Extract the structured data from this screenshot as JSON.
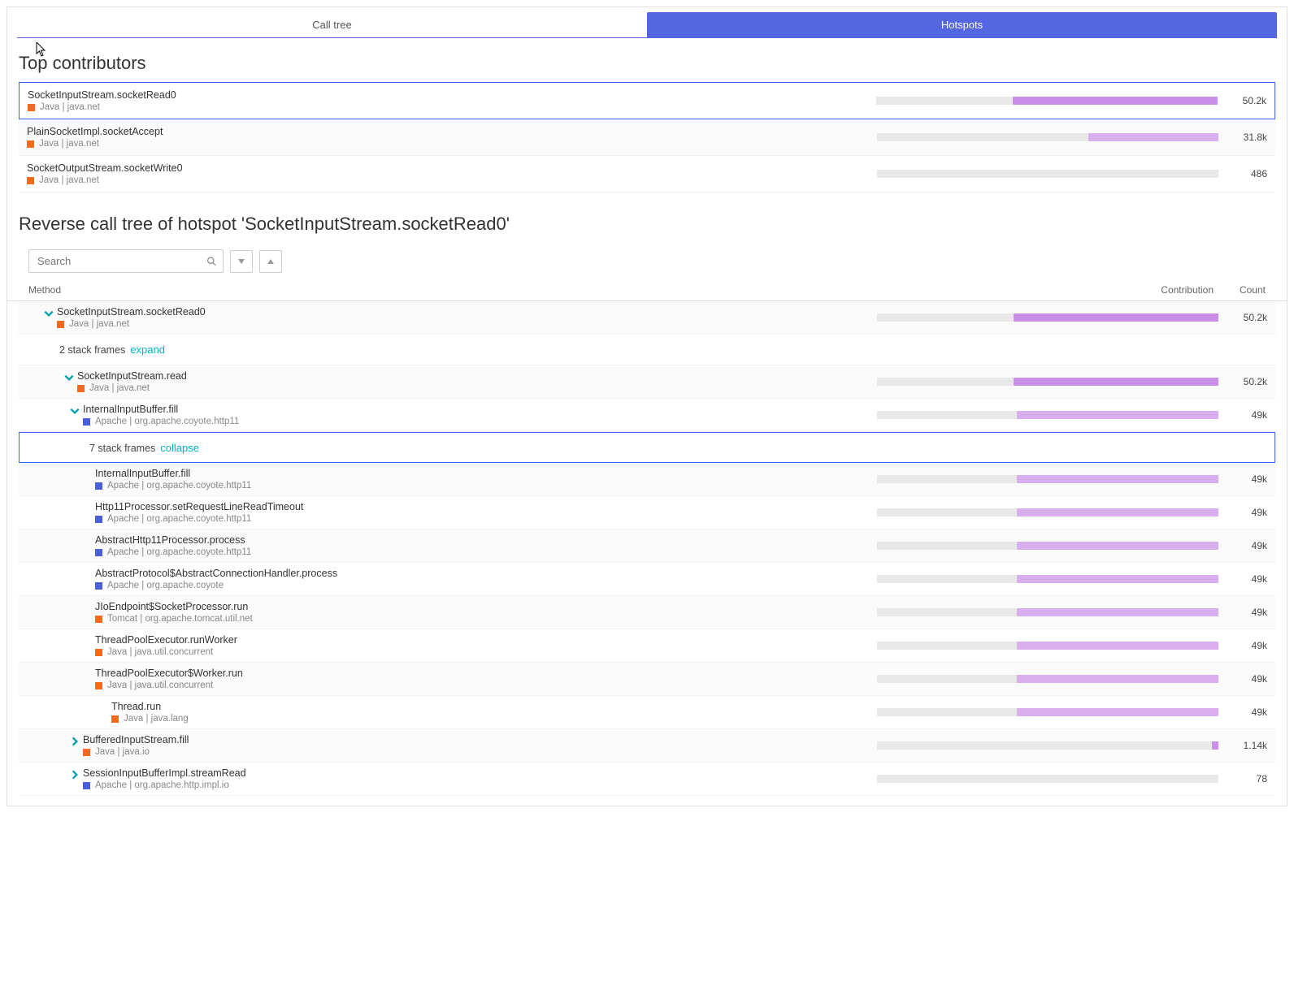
{
  "colors": {
    "tab_active_bg": "#5466e0",
    "tab_active_fg": "#ffffff",
    "bar_bg": "#e8e8e8",
    "bar_fill_primary": "#c98ee8",
    "bar_fill_light": "#d8aeee",
    "selection_border": "#3b63ff",
    "link": "#00b4c8",
    "swatch_java": "#f36a1f",
    "swatch_apache": "#4a60d8"
  },
  "tabs": {
    "call_tree": "Call tree",
    "hotspots": "Hotspots"
  },
  "top_title": "Top contributors",
  "reverse_title": "Reverse call tree of hotspot 'SocketInputStream.socketRead0'",
  "search_placeholder": "Search",
  "headers": {
    "method": "Method",
    "contribution": "Contribution",
    "count": "Count"
  },
  "contributors": [
    {
      "name": "SocketInputStream.socketRead0",
      "tech": "Java",
      "pkg": "java.net",
      "swatch": "#f36a1f",
      "count": "50.2k",
      "bar_pct": 60,
      "bar_color": "#c98ee8",
      "selected": true
    },
    {
      "name": "PlainSocketImpl.socketAccept",
      "tech": "Java",
      "pkg": "java.net",
      "swatch": "#f36a1f",
      "count": "31.8k",
      "bar_pct": 38,
      "bar_color": "#d8aeee",
      "selected": false,
      "alt": true
    },
    {
      "name": "SocketOutputStream.socketWrite0",
      "tech": "Java",
      "pkg": "java.net",
      "swatch": "#f36a1f",
      "count": "486",
      "bar_pct": 0,
      "bar_color": "#c98ee8",
      "selected": false
    }
  ],
  "tree": [
    {
      "indent": 30,
      "chev": "down",
      "chev_color": "#00a0b0",
      "name": "SocketInputStream.socketRead0",
      "tech": "Java",
      "pkg": "java.net",
      "swatch": "#f36a1f",
      "count": "50.2k",
      "bar_pct": 60,
      "bar_color": "#c98ee8",
      "alt": true
    },
    {
      "indent": 50,
      "frames": "2 stack frames",
      "action": "expand"
    },
    {
      "indent": 55,
      "chev": "down",
      "chev_color": "#00a0b0",
      "name": "SocketInputStream.read",
      "tech": "Java",
      "pkg": "java.net",
      "swatch": "#f36a1f",
      "count": "50.2k",
      "bar_pct": 60,
      "bar_color": "#c98ee8",
      "alt": true
    },
    {
      "indent": 62,
      "chev": "down",
      "chev_color": "#00a0b0",
      "name": "InternalInputBuffer.fill",
      "tech": "Apache",
      "pkg": "org.apache.coyote.http11",
      "swatch": "#4a60d8",
      "count": "49k",
      "bar_pct": 59,
      "bar_color": "#d8aeee"
    },
    {
      "indent": 86,
      "frames": "7 stack frames",
      "action": "collapse",
      "selected": true
    },
    {
      "indent": 94,
      "name": "InternalInputBuffer.fill",
      "tech": "Apache",
      "pkg": "org.apache.coyote.http11",
      "swatch": "#4a60d8",
      "count": "49k",
      "bar_pct": 59,
      "bar_color": "#d8aeee",
      "alt": true
    },
    {
      "indent": 94,
      "name": "Http11Processor.setRequestLineReadTimeout",
      "tech": "Apache",
      "pkg": "org.apache.coyote.http11",
      "swatch": "#4a60d8",
      "count": "49k",
      "bar_pct": 59,
      "bar_color": "#d8aeee"
    },
    {
      "indent": 94,
      "name": "AbstractHttp11Processor.process",
      "tech": "Apache",
      "pkg": "org.apache.coyote.http11",
      "swatch": "#4a60d8",
      "count": "49k",
      "bar_pct": 59,
      "bar_color": "#d8aeee",
      "alt": true
    },
    {
      "indent": 94,
      "name": "AbstractProtocol$AbstractConnectionHandler.process",
      "tech": "Apache",
      "pkg": "org.apache.coyote",
      "swatch": "#4a60d8",
      "count": "49k",
      "bar_pct": 59,
      "bar_color": "#d8aeee"
    },
    {
      "indent": 94,
      "name": "JIoEndpoint$SocketProcessor.run",
      "tech": "Tomcat",
      "pkg": "org.apache.tomcat.util.net",
      "swatch": "#f36a1f",
      "count": "49k",
      "bar_pct": 59,
      "bar_color": "#d8aeee",
      "alt": true
    },
    {
      "indent": 94,
      "name": "ThreadPoolExecutor.runWorker",
      "tech": "Java",
      "pkg": "java.util.concurrent",
      "swatch": "#f36a1f",
      "count": "49k",
      "bar_pct": 59,
      "bar_color": "#d8aeee"
    },
    {
      "indent": 94,
      "name": "ThreadPoolExecutor$Worker.run",
      "tech": "Java",
      "pkg": "java.util.concurrent",
      "swatch": "#f36a1f",
      "count": "49k",
      "bar_pct": 59,
      "bar_color": "#d8aeee",
      "alt": true
    },
    {
      "indent": 114,
      "name": "Thread.run",
      "tech": "Java",
      "pkg": "java.lang",
      "swatch": "#f36a1f",
      "count": "49k",
      "bar_pct": 59,
      "bar_color": "#d8aeee"
    },
    {
      "indent": 62,
      "chev": "right",
      "chev_color": "#00a0b0",
      "name": "BufferedInputStream.fill",
      "tech": "Java",
      "pkg": "java.io",
      "swatch": "#f36a1f",
      "count": "1.14k",
      "bar_pct": 2,
      "bar_color": "#c98ee8",
      "alt": true
    },
    {
      "indent": 62,
      "chev": "right",
      "chev_color": "#00a0b0",
      "name": "SessionInputBufferImpl.streamRead",
      "tech": "Apache",
      "pkg": "org.apache.http.impl.io",
      "swatch": "#4a60d8",
      "count": "78",
      "bar_pct": 0,
      "bar_color": "#c98ee8"
    }
  ]
}
